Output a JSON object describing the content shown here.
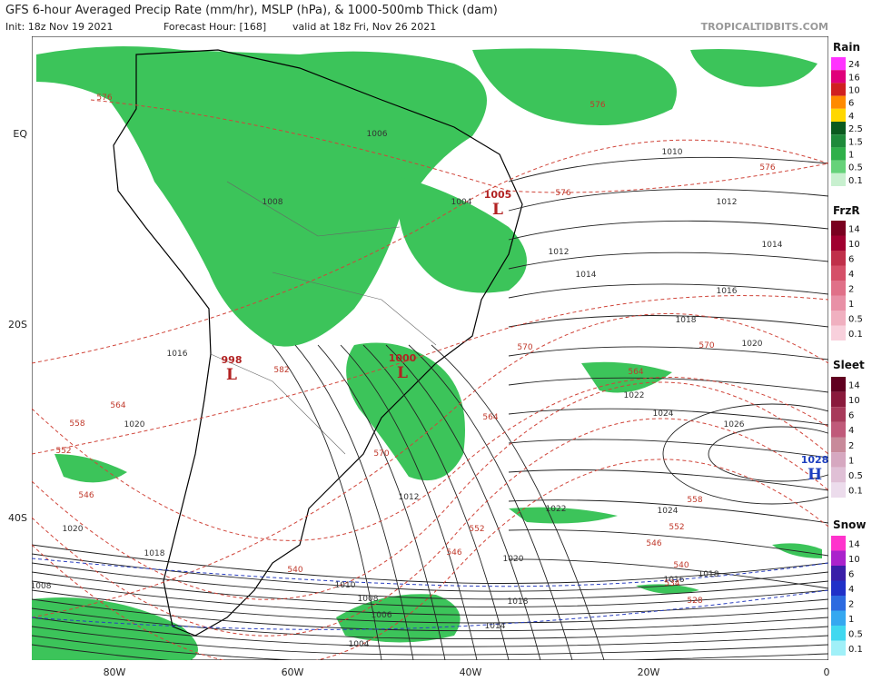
{
  "header": {
    "title": "GFS 6-hour Averaged Precip Rate (mm/hr), MSLP (hPa), & 1000-500mb Thick (dam)",
    "subtitle_init": "Init: 18z Nov 19 2021",
    "subtitle_hour": "Forecast Hour: [168]",
    "subtitle_valid": "valid at 18z Fri, Nov 26 2021",
    "source": "TROPICALTIDBITS.COM"
  },
  "map": {
    "lat_labels": [
      "EQ",
      "20S",
      "40S"
    ],
    "lon_labels": [
      "80W",
      "60W",
      "40W",
      "20W",
      "0"
    ],
    "pressure_centers": [
      {
        "label": "1005",
        "letter": "L"
      },
      {
        "label": "1000",
        "letter": "L"
      },
      {
        "label": "998",
        "letter": "L"
      },
      {
        "label": "1028",
        "letter": "H"
      }
    ],
    "isobar_labels": [
      "1004",
      "1006",
      "1008",
      "1010",
      "1012",
      "1014",
      "1016",
      "1018",
      "1020",
      "1022",
      "1024",
      "1026",
      "1012",
      "1014",
      "1016",
      "1020",
      "1020",
      "1018",
      "1008",
      "1016",
      "1018",
      "1022",
      "1024",
      "1020",
      "1018",
      "1014",
      "1010",
      "1008",
      "1004",
      "1006",
      "1012"
    ],
    "thickness_labels": [
      "576",
      "576",
      "576",
      "576",
      "570",
      "570",
      "564",
      "564",
      "558",
      "552",
      "552",
      "546",
      "546",
      "540",
      "540",
      "534",
      "528",
      "564",
      "558",
      "552",
      "546",
      "582",
      "570"
    ]
  },
  "legend": [
    {
      "title": "Rain",
      "labels": [
        "24",
        "16",
        "10",
        "6",
        "4",
        "2.5",
        "1.5",
        "1",
        "0.5",
        "0.1"
      ]
    },
    {
      "title": "FrzR",
      "labels": [
        "14",
        "10",
        "6",
        "4",
        "2",
        "1",
        "0.5",
        "0.1"
      ]
    },
    {
      "title": "Sleet",
      "labels": [
        "14",
        "10",
        "6",
        "4",
        "2",
        "1",
        "0.5",
        "0.1"
      ]
    },
    {
      "title": "Snow",
      "labels": [
        "14",
        "10",
        "6",
        "4",
        "2",
        "1",
        "0.5",
        "0.1"
      ]
    }
  ]
}
